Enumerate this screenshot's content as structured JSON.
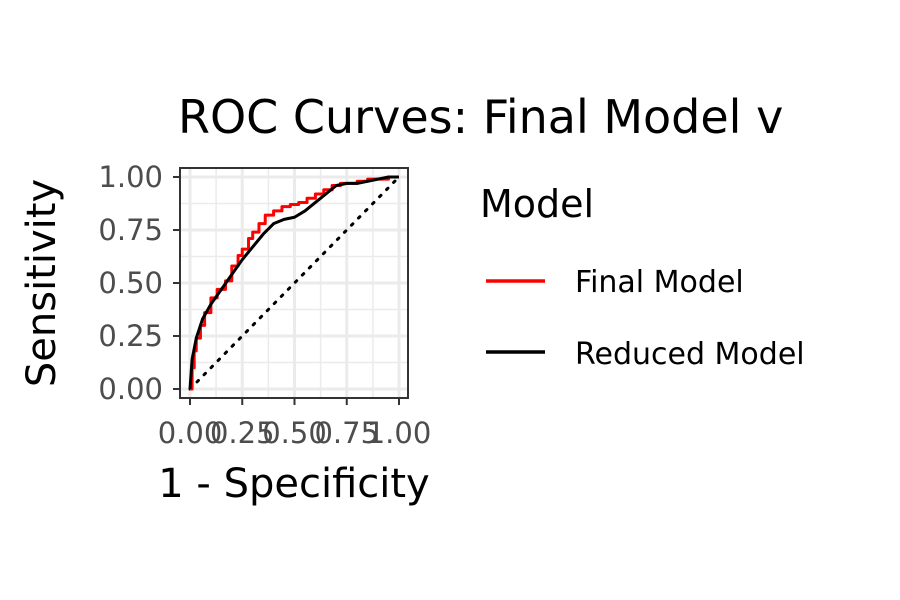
{
  "chart_data": {
    "type": "line",
    "title": "ROC Curves: Final Model v",
    "xlabel": "1 - Specificity",
    "ylabel": "Sensitivity",
    "xlim": [
      0,
      1
    ],
    "ylim": [
      0,
      1
    ],
    "grid": true,
    "legend_position": "right",
    "x_ticks": [
      "0.00",
      "0.25",
      "0.50",
      "0.75",
      "1.00"
    ],
    "y_ticks": [
      "0.00",
      "0.25",
      "0.50",
      "0.75",
      "1.00"
    ],
    "legend": {
      "title": "Model",
      "entries": [
        "Final Model",
        "Reduced Model"
      ]
    },
    "reference_line": {
      "x": [
        0,
        1
      ],
      "y": [
        0,
        1
      ],
      "style": "dotted",
      "color": "#000000"
    },
    "series": [
      {
        "name": "Final Model",
        "color": "#ff0000",
        "x": [
          0,
          0.01,
          0.02,
          0.03,
          0.05,
          0.07,
          0.1,
          0.13,
          0.17,
          0.2,
          0.23,
          0.25,
          0.28,
          0.3,
          0.33,
          0.36,
          0.4,
          0.44,
          0.48,
          0.52,
          0.56,
          0.6,
          0.64,
          0.68,
          0.72,
          0.76,
          0.8,
          0.85,
          0.9,
          0.95,
          1.0
        ],
        "y": [
          0,
          0.1,
          0.18,
          0.24,
          0.3,
          0.36,
          0.43,
          0.47,
          0.51,
          0.58,
          0.63,
          0.66,
          0.71,
          0.74,
          0.78,
          0.82,
          0.84,
          0.86,
          0.87,
          0.88,
          0.9,
          0.92,
          0.94,
          0.96,
          0.97,
          0.97,
          0.98,
          0.99,
          0.99,
          1.0,
          1.0
        ]
      },
      {
        "name": "Reduced Model",
        "color": "#000000",
        "x": [
          0,
          0.01,
          0.03,
          0.06,
          0.1,
          0.15,
          0.2,
          0.25,
          0.3,
          0.35,
          0.4,
          0.45,
          0.5,
          0.55,
          0.6,
          0.65,
          0.7,
          0.75,
          0.8,
          0.85,
          0.9,
          0.95,
          1.0
        ],
        "y": [
          0,
          0.14,
          0.24,
          0.33,
          0.4,
          0.47,
          0.54,
          0.61,
          0.67,
          0.73,
          0.78,
          0.8,
          0.81,
          0.84,
          0.88,
          0.92,
          0.96,
          0.97,
          0.97,
          0.98,
          0.99,
          1.0,
          1.0
        ]
      }
    ]
  }
}
